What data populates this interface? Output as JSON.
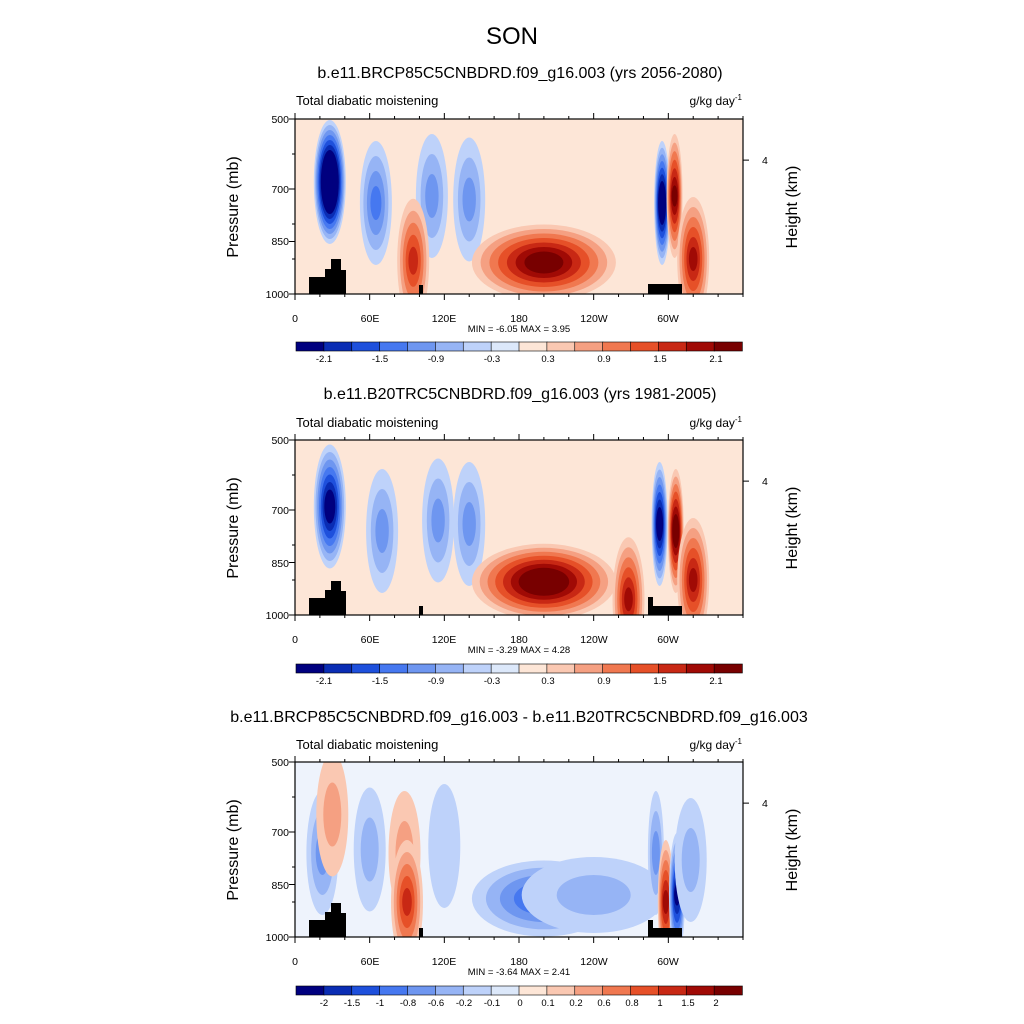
{
  "season_title": "SON",
  "chart_data": [
    {
      "type": "heatmap",
      "title": "b.e11.BRCP85C5CNBDRD.f09_g16.003 (yrs 2056-2080)",
      "variable": "Total diabatic moistening",
      "units": "g/kg day",
      "units_exponent": "-1",
      "xlabel": "",
      "ylabel": "Pressure (mb)",
      "y2label": "Height (km)",
      "x_ticks": [
        "0",
        "60E",
        "120E",
        "180",
        "120W",
        "60W"
      ],
      "y_ticks": [
        "500",
        "700",
        "850",
        "1000"
      ],
      "y2_ticks": [
        "4"
      ],
      "xlim": [
        0,
        360
      ],
      "ylim": [
        1000,
        500
      ],
      "min_max_text": "MIN =  -6.05  MAX =   3.95",
      "colorbar_labels": [
        "-2.1",
        "-1.5",
        "-0.9",
        "-0.3",
        "0.3",
        "0.9",
        "1.5",
        "2.1"
      ],
      "features": [
        {
          "lon": 28,
          "p": 680,
          "value": -3.5
        },
        {
          "lon": 65,
          "p": 740,
          "value": -1.1
        },
        {
          "lon": 110,
          "p": 720,
          "value": -1.0
        },
        {
          "lon": 140,
          "p": 730,
          "value": -1.0
        },
        {
          "lon": 200,
          "p": 910,
          "value": 2.5
        },
        {
          "lon": 95,
          "p": 905,
          "value": 1.5
        },
        {
          "lon": 295,
          "p": 740,
          "value": -2.6
        },
        {
          "lon": 305,
          "p": 720,
          "value": 2.2
        },
        {
          "lon": 320,
          "p": 900,
          "value": 1.8
        }
      ]
    },
    {
      "type": "heatmap",
      "title": "b.e11.B20TRC5CNBDRD.f09_g16.003 (yrs 1981-2005)",
      "variable": "Total diabatic moistening",
      "units": "g/kg day",
      "units_exponent": "-1",
      "xlabel": "",
      "ylabel": "Pressure (mb)",
      "y2label": "Height (km)",
      "x_ticks": [
        "0",
        "60E",
        "120E",
        "180",
        "120W",
        "60W"
      ],
      "y_ticks": [
        "500",
        "700",
        "850",
        "1000"
      ],
      "y2_ticks": [
        "4"
      ],
      "xlim": [
        0,
        360
      ],
      "ylim": [
        1000,
        500
      ],
      "min_max_text": "MIN =  -3.29  MAX =   4.28",
      "colorbar_labels": [
        "-2.1",
        "-1.5",
        "-0.9",
        "-0.3",
        "0.3",
        "0.9",
        "1.5",
        "2.1"
      ],
      "features": [
        {
          "lon": 28,
          "p": 690,
          "value": -2.4
        },
        {
          "lon": 70,
          "p": 760,
          "value": -0.8
        },
        {
          "lon": 115,
          "p": 730,
          "value": -1.0
        },
        {
          "lon": 140,
          "p": 740,
          "value": -1.0
        },
        {
          "lon": 200,
          "p": 905,
          "value": 2.8
        },
        {
          "lon": 268,
          "p": 955,
          "value": 1.8
        },
        {
          "lon": 293,
          "p": 740,
          "value": -2.4
        },
        {
          "lon": 306,
          "p": 760,
          "value": 2.3
        },
        {
          "lon": 320,
          "p": 900,
          "value": 1.8
        }
      ]
    },
    {
      "type": "heatmap",
      "title": "b.e11.BRCP85C5CNBDRD.f09_g16.003 - b.e11.B20TRC5CNBDRD.f09_g16.003",
      "variable": "Total diabatic moistening",
      "units": "g/kg day",
      "units_exponent": "-1",
      "xlabel": "",
      "ylabel": "Pressure (mb)",
      "y2label": "Height (km)",
      "x_ticks": [
        "0",
        "60E",
        "120E",
        "180",
        "120W",
        "60W"
      ],
      "y_ticks": [
        "500",
        "700",
        "850",
        "1000"
      ],
      "y2_ticks": [
        "4"
      ],
      "xlim": [
        0,
        360
      ],
      "ylim": [
        1000,
        500
      ],
      "min_max_text": "MIN =  -3.64  MAX =   2.41",
      "colorbar_labels": [
        "-2",
        "-1.5",
        "-1",
        "-0.8",
        "-0.6",
        "-0.2",
        "-0.1",
        "0",
        "0.1",
        "0.2",
        "0.6",
        "0.8",
        "1",
        "1.5",
        "2"
      ],
      "features": [
        {
          "lon": 22,
          "p": 760,
          "value": -0.8
        },
        {
          "lon": 30,
          "p": 650,
          "value": 0.5
        },
        {
          "lon": 60,
          "p": 750,
          "value": -0.7
        },
        {
          "lon": 88,
          "p": 760,
          "value": 0.7
        },
        {
          "lon": 90,
          "p": 900,
          "value": 1.5
        },
        {
          "lon": 120,
          "p": 740,
          "value": -0.4
        },
        {
          "lon": 200,
          "p": 890,
          "value": -1.6
        },
        {
          "lon": 240,
          "p": 880,
          "value": -0.5
        },
        {
          "lon": 290,
          "p": 760,
          "value": -1.0
        },
        {
          "lon": 298,
          "p": 900,
          "value": 1.8
        },
        {
          "lon": 307,
          "p": 880,
          "value": -2.2
        },
        {
          "lon": 318,
          "p": 780,
          "value": -0.6
        }
      ]
    }
  ],
  "colors": {
    "colorbar_8": [
      "#00007f",
      "#0a2db4",
      "#1e50dc",
      "#4678f0",
      "#6e96f0",
      "#96b4f5",
      "#bed2fa",
      "#dce8fa",
      "#fde6d7",
      "#fac8b2",
      "#f5a082",
      "#f07850",
      "#e65028",
      "#c82814",
      "#a00a05",
      "#780000"
    ],
    "colorbar_15": [
      "#00007f",
      "#0a2db4",
      "#1e50dc",
      "#4678f0",
      "#6e96f0",
      "#96b4f5",
      "#bed2fa",
      "#dce8fa",
      "#fde6d7",
      "#fac8b2",
      "#f5a082",
      "#f07850",
      "#e65028",
      "#c82814",
      "#a00a05",
      "#780000"
    ]
  }
}
